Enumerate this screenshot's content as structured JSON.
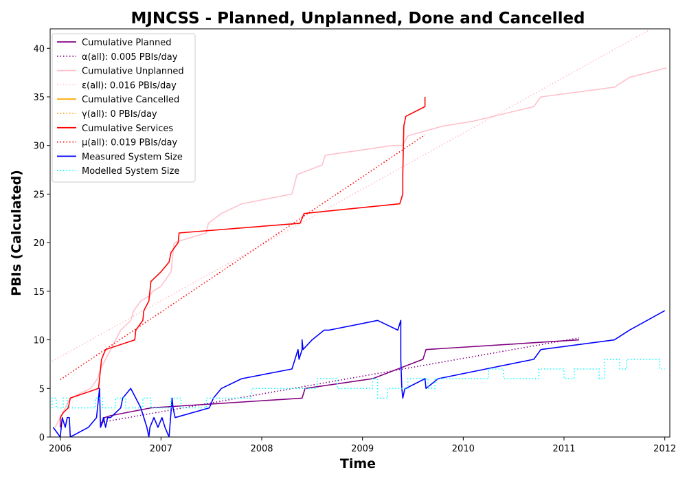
{
  "chart_data": {
    "type": "line",
    "title": "MJNCSS - Planned, Unplanned, Done  and Cancelled",
    "xlabel": "Time",
    "ylabel": "PBIs (Calculated)",
    "xlim": [
      2005.9,
      2012.05
    ],
    "ylim": [
      0,
      42
    ],
    "x_ticks": [
      2006,
      2007,
      2008,
      2009,
      2010,
      2011,
      2012
    ],
    "x_tick_labels": [
      "2006",
      "2007",
      "2008",
      "2009",
      "2010",
      "2011",
      "2012"
    ],
    "y_ticks": [
      0,
      5,
      10,
      15,
      20,
      25,
      30,
      35,
      40
    ],
    "y_tick_labels": [
      "0",
      "5",
      "10",
      "15",
      "20",
      "25",
      "30",
      "35",
      "40"
    ],
    "grid": false,
    "legend_position": "top-left",
    "series": [
      {
        "name": "Cumulative Planned",
        "color": "#800080",
        "style": "solid",
        "x": [
          2006.4,
          2006.42,
          2006.44,
          2006.5,
          2006.9,
          2007.5,
          2008.4,
          2008.43,
          2009.1,
          2009.6,
          2009.63,
          2011.15
        ],
        "y": [
          1,
          1.5,
          2,
          2.2,
          3,
          3.4,
          4,
          5,
          6,
          8,
          9,
          10
        ]
      },
      {
        "name": "α(all): 0.005 PBIs/day",
        "color": "#800080",
        "style": "dotted",
        "x": [
          2006.4,
          2011.15
        ],
        "y": [
          1.5,
          10.2
        ]
      },
      {
        "name": "Cumulative Unplanned",
        "color": "#ffc0cb",
        "style": "solid",
        "x": [
          2005.95,
          2006.0,
          2006.05,
          2006.1,
          2006.3,
          2006.37,
          2006.4,
          2006.45,
          2006.6,
          2006.7,
          2006.73,
          2006.8,
          2006.88,
          2006.92,
          2007.0,
          2007.1,
          2007.13,
          2007.45,
          2007.47,
          2007.6,
          2007.8,
          2008.3,
          2008.35,
          2008.6,
          2008.63,
          2009.3,
          2009.4,
          2009.45,
          2009.8,
          2010.1,
          2010.7,
          2010.77,
          2011.5,
          2011.65,
          2012.02
        ],
        "y": [
          1,
          2,
          3,
          4,
          5,
          6,
          7,
          8,
          11,
          12,
          13,
          14,
          14.5,
          15,
          15.5,
          17,
          20,
          21,
          22,
          23,
          24,
          25,
          27,
          28,
          29,
          30,
          30,
          31,
          32,
          32.5,
          34,
          35,
          36,
          37,
          38
        ]
      },
      {
        "name": "ε(all): 0.016 PBIs/day",
        "color": "#ffc0cb",
        "style": "dotted",
        "x": [
          2005.92,
          2011.85
        ],
        "y": [
          7.8,
          41.9
        ]
      },
      {
        "name": "Cumulative Cancelled",
        "color": "#ffa500",
        "style": "solid",
        "x": [],
        "y": []
      },
      {
        "name": "γ(all): 0 PBIs/day",
        "color": "#ffa500",
        "style": "dotted",
        "x": [],
        "y": []
      },
      {
        "name": "Cumulative Services",
        "color": "#ff0000",
        "style": "solid",
        "x": [
          2006.0,
          2006.0,
          2006.03,
          2006.08,
          2006.1,
          2006.38,
          2006.39,
          2006.41,
          2006.43,
          2006.45,
          2006.74,
          2006.75,
          2006.82,
          2006.83,
          2006.88,
          2006.9,
          2007.0,
          2007.08,
          2007.1,
          2007.17,
          2007.18,
          2008.38,
          2008.4,
          2008.42,
          2009.37,
          2009.4,
          2009.4,
          2009.41,
          2009.43,
          2009.62,
          2009.62
        ],
        "y": [
          1,
          2,
          2.5,
          3,
          4,
          5,
          6,
          8,
          8.5,
          9,
          10,
          11,
          12,
          13,
          14,
          16,
          17,
          18,
          19,
          20,
          21,
          22,
          22.5,
          23,
          24,
          25,
          27,
          32,
          33,
          34,
          35
        ]
      },
      {
        "name": "μ(all): 0.019 PBIs/day",
        "color": "#ff0000",
        "style": "dotted",
        "x": [
          2006.0,
          2009.62
        ],
        "y": [
          5.9,
          31.1
        ]
      },
      {
        "name": "Measured System Size",
        "color": "#0000ff",
        "style": "solid",
        "x": [
          2005.93,
          2006.0,
          2006.02,
          2006.05,
          2006.07,
          2006.09,
          2006.1,
          2006.28,
          2006.36,
          2006.39,
          2006.4,
          2006.43,
          2006.45,
          2006.47,
          2006.5,
          2006.6,
          2006.62,
          2006.7,
          2006.75,
          2006.8,
          2006.83,
          2006.86,
          2006.88,
          2006.89,
          2006.93,
          2006.97,
          2007.01,
          2007.04,
          2007.08,
          2007.11,
          2007.12,
          2007.14,
          2007.48,
          2007.52,
          2007.6,
          2007.8,
          2008.3,
          2008.36,
          2008.37,
          2008.4,
          2008.4,
          2008.41,
          2008.5,
          2008.62,
          2008.67,
          2009.15,
          2009.35,
          2009.38,
          2009.38,
          2009.39,
          2009.4,
          2009.42,
          2009.43,
          2009.62,
          2009.63,
          2009.75,
          2010.7,
          2010.77,
          2011.5,
          2011.65,
          2012.0
        ],
        "y": [
          1,
          0,
          2,
          1,
          2,
          2,
          0,
          1,
          2,
          5,
          1,
          2,
          1,
          2,
          2,
          3,
          4,
          5,
          4,
          3,
          2,
          1,
          0,
          1,
          2,
          1,
          2,
          1,
          0,
          4,
          3,
          2,
          3,
          4,
          5,
          6,
          7,
          9,
          8,
          9,
          10,
          9,
          10,
          11,
          11,
          12,
          11,
          12,
          8,
          5,
          4,
          5,
          5,
          6,
          5,
          6,
          8,
          9,
          10,
          11,
          13
        ]
      },
      {
        "name": "Modelled System Size",
        "color": "#00ffff",
        "style": "dotted",
        "x": [
          2005.92,
          2005.92,
          2005.96,
          2005.96,
          2006.03,
          2006.03,
          2006.07,
          2006.07,
          2006.35,
          2006.35,
          2006.42,
          2006.42,
          2006.55,
          2006.55,
          2006.65,
          2006.65,
          2006.82,
          2006.82,
          2006.9,
          2006.9,
          2007.1,
          2007.1,
          2007.2,
          2007.2,
          2007.45,
          2007.45,
          2007.55,
          2007.55,
          2007.9,
          2007.9,
          2008.0,
          2008.0,
          2008.55,
          2008.55,
          2008.75,
          2008.75,
          2009.1,
          2009.1,
          2009.15,
          2009.15,
          2009.25,
          2009.25,
          2009.45,
          2009.45,
          2009.65,
          2009.65,
          2009.72,
          2009.72,
          2009.8,
          2009.8,
          2010.25,
          2010.25,
          2010.4,
          2010.4,
          2010.75,
          2010.75,
          2011.0,
          2011.0,
          2011.1,
          2011.1,
          2011.35,
          2011.35,
          2011.4,
          2011.4,
          2011.55,
          2011.55,
          2011.62,
          2011.62,
          2011.95,
          2011.95,
          2012.0
        ],
        "y": [
          3,
          4,
          4,
          3,
          3,
          4,
          4,
          3,
          3,
          4,
          4,
          3,
          3,
          4,
          4,
          3,
          3,
          4,
          4,
          3,
          3,
          4,
          4,
          3,
          3,
          4,
          4,
          4,
          4,
          5,
          5,
          5,
          5,
          6,
          6,
          5,
          5,
          6,
          6,
          4,
          4,
          5,
          5,
          6,
          6,
          5,
          5,
          6,
          6,
          6,
          6,
          7,
          7,
          6,
          6,
          7,
          7,
          6,
          6,
          7,
          7,
          6,
          6,
          8,
          8,
          7,
          7,
          8,
          8,
          7,
          7
        ]
      }
    ]
  }
}
